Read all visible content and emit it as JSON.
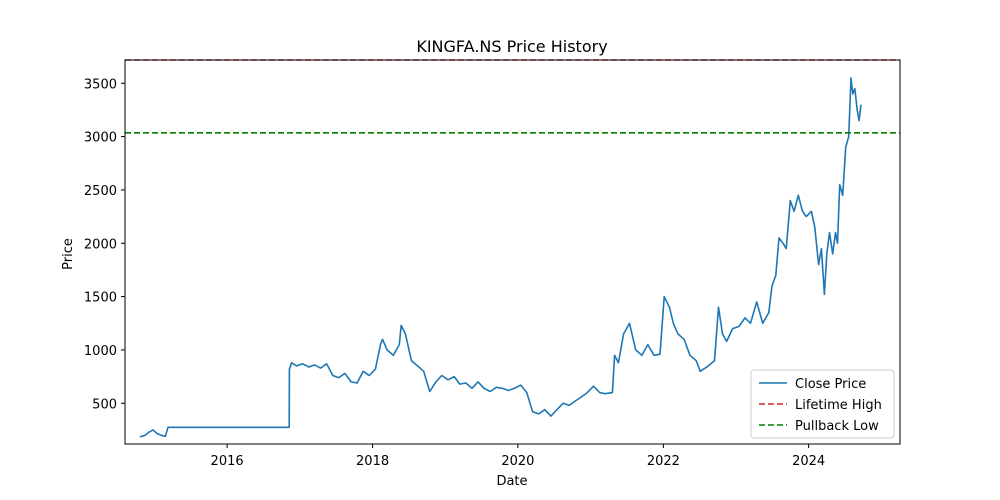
{
  "chart_data": {
    "type": "line",
    "title": "KINGFA.NS Price History",
    "xlabel": "Date",
    "ylabel": "Price",
    "xlim": [
      "2014-08-06",
      "2025-04-04"
    ],
    "ylim": [
      118,
      3718
    ],
    "x_ticks": [
      "2016",
      "2018",
      "2020",
      "2022",
      "2024"
    ],
    "y_ticks": [
      500,
      1000,
      1500,
      2000,
      2500,
      3000,
      3500
    ],
    "grid": false,
    "legend_position": "lower-right",
    "series": [
      {
        "name": "Close Price",
        "color": "#1f77b4",
        "style": "solid",
        "points": [
          [
            "2014-10-20",
            185
          ],
          [
            "2014-11-15",
            200
          ],
          [
            "2014-12-05",
            230
          ],
          [
            "2014-12-25",
            250
          ],
          [
            "2015-01-15",
            215
          ],
          [
            "2015-02-05",
            200
          ],
          [
            "2015-02-25",
            190
          ],
          [
            "2015-03-10",
            275
          ],
          [
            "2016-11-08",
            275
          ],
          [
            "2016-11-09",
            820
          ],
          [
            "2016-11-20",
            880
          ],
          [
            "2016-12-15",
            850
          ],
          [
            "2017-01-15",
            870
          ],
          [
            "2017-02-15",
            840
          ],
          [
            "2017-03-15",
            860
          ],
          [
            "2017-04-15",
            830
          ],
          [
            "2017-05-15",
            870
          ],
          [
            "2017-06-15",
            760
          ],
          [
            "2017-07-15",
            740
          ],
          [
            "2017-08-15",
            780
          ],
          [
            "2017-09-15",
            700
          ],
          [
            "2017-10-15",
            690
          ],
          [
            "2017-11-15",
            800
          ],
          [
            "2017-12-15",
            760
          ],
          [
            "2018-01-15",
            820
          ],
          [
            "2018-02-10",
            1050
          ],
          [
            "2018-02-20",
            1100
          ],
          [
            "2018-03-15",
            1000
          ],
          [
            "2018-04-15",
            950
          ],
          [
            "2018-05-15",
            1050
          ],
          [
            "2018-05-25",
            1230
          ],
          [
            "2018-06-15",
            1150
          ],
          [
            "2018-07-15",
            900
          ],
          [
            "2018-08-15",
            850
          ],
          [
            "2018-09-15",
            800
          ],
          [
            "2018-10-15",
            610
          ],
          [
            "2018-11-15",
            700
          ],
          [
            "2018-12-15",
            760
          ],
          [
            "2019-01-15",
            720
          ],
          [
            "2019-02-15",
            750
          ],
          [
            "2019-03-15",
            680
          ],
          [
            "2019-04-15",
            690
          ],
          [
            "2019-05-15",
            640
          ],
          [
            "2019-06-15",
            700
          ],
          [
            "2019-07-15",
            640
          ],
          [
            "2019-08-15",
            610
          ],
          [
            "2019-09-15",
            650
          ],
          [
            "2019-10-15",
            640
          ],
          [
            "2019-11-15",
            620
          ],
          [
            "2019-12-15",
            640
          ],
          [
            "2020-01-15",
            670
          ],
          [
            "2020-02-15",
            600
          ],
          [
            "2020-03-15",
            420
          ],
          [
            "2020-04-15",
            400
          ],
          [
            "2020-05-15",
            440
          ],
          [
            "2020-06-15",
            380
          ],
          [
            "2020-07-15",
            440
          ],
          [
            "2020-08-15",
            500
          ],
          [
            "2020-09-15",
            480
          ],
          [
            "2020-10-15",
            520
          ],
          [
            "2020-11-15",
            560
          ],
          [
            "2020-12-15",
            600
          ],
          [
            "2021-01-15",
            660
          ],
          [
            "2021-02-15",
            600
          ],
          [
            "2021-03-15",
            590
          ],
          [
            "2021-04-20",
            600
          ],
          [
            "2021-05-01",
            950
          ],
          [
            "2021-05-20",
            880
          ],
          [
            "2021-06-15",
            1150
          ],
          [
            "2021-07-15",
            1250
          ],
          [
            "2021-08-15",
            1000
          ],
          [
            "2021-09-15",
            950
          ],
          [
            "2021-10-15",
            1050
          ],
          [
            "2021-11-15",
            950
          ],
          [
            "2021-12-15",
            960
          ],
          [
            "2022-01-05",
            1500
          ],
          [
            "2022-02-01",
            1400
          ],
          [
            "2022-02-20",
            1250
          ],
          [
            "2022-03-15",
            1150
          ],
          [
            "2022-04-15",
            1100
          ],
          [
            "2022-05-15",
            950
          ],
          [
            "2022-06-15",
            900
          ],
          [
            "2022-07-05",
            800
          ],
          [
            "2022-08-15",
            850
          ],
          [
            "2022-09-15",
            900
          ],
          [
            "2022-10-05",
            1400
          ],
          [
            "2022-10-25",
            1150
          ],
          [
            "2022-11-15",
            1080
          ],
          [
            "2022-12-15",
            1200
          ],
          [
            "2023-01-15",
            1220
          ],
          [
            "2023-02-15",
            1300
          ],
          [
            "2023-03-15",
            1250
          ],
          [
            "2023-04-15",
            1450
          ],
          [
            "2023-05-15",
            1250
          ],
          [
            "2023-06-15",
            1350
          ],
          [
            "2023-07-01",
            1600
          ],
          [
            "2023-07-20",
            1700
          ],
          [
            "2023-08-05",
            2050
          ],
          [
            "2023-08-25",
            2000
          ],
          [
            "2023-09-10",
            1950
          ],
          [
            "2023-10-01",
            2400
          ],
          [
            "2023-10-20",
            2300
          ],
          [
            "2023-11-10",
            2450
          ],
          [
            "2023-12-01",
            2300
          ],
          [
            "2023-12-20",
            2250
          ],
          [
            "2024-01-15",
            2300
          ],
          [
            "2024-02-01",
            2150
          ],
          [
            "2024-02-20",
            1800
          ],
          [
            "2024-03-05",
            1950
          ],
          [
            "2024-03-20",
            1520
          ],
          [
            "2024-04-01",
            1900
          ],
          [
            "2024-04-15",
            2100
          ],
          [
            "2024-05-01",
            1900
          ],
          [
            "2024-05-15",
            2100
          ],
          [
            "2024-05-25",
            2000
          ],
          [
            "2024-06-05",
            2550
          ],
          [
            "2024-06-20",
            2450
          ],
          [
            "2024-07-05",
            2900
          ],
          [
            "2024-07-20",
            3000
          ],
          [
            "2024-08-01",
            3550
          ],
          [
            "2024-08-10",
            3400
          ],
          [
            "2024-08-20",
            3450
          ],
          [
            "2024-09-01",
            3250
          ],
          [
            "2024-09-10",
            3150
          ],
          [
            "2024-09-20",
            3300
          ]
        ]
      },
      {
        "name": "Lifetime High",
        "color": "#d62728",
        "style": "dashed",
        "y": 3718
      },
      {
        "name": "Pullback Low",
        "color": "#008000",
        "style": "dashed",
        "y": 3035
      }
    ]
  }
}
